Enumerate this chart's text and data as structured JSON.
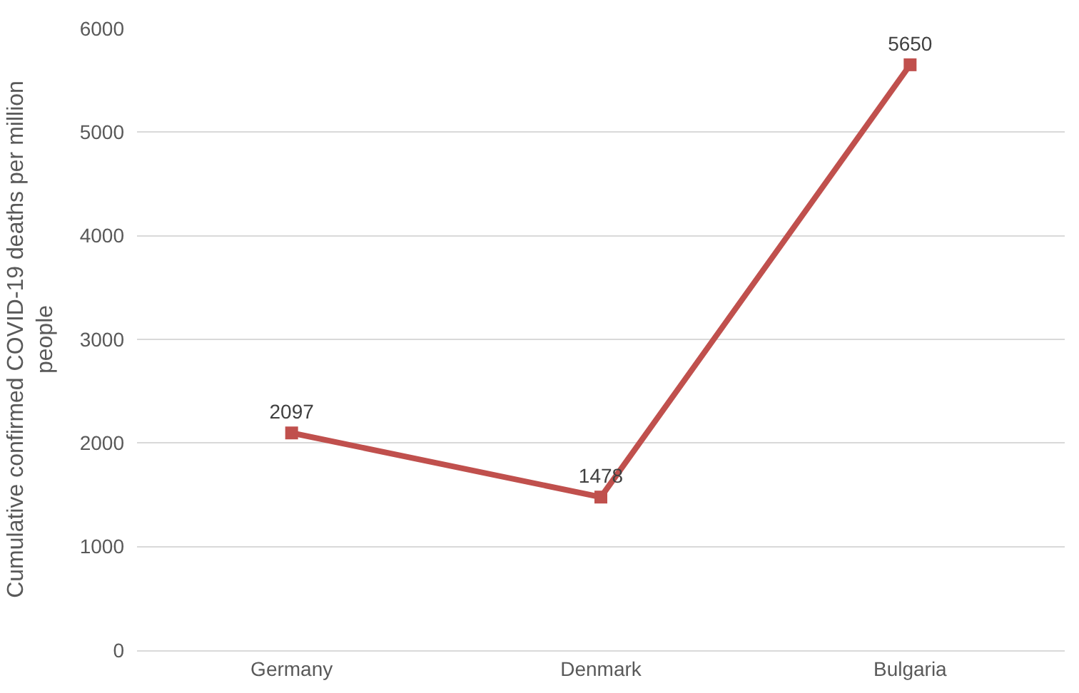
{
  "chart_data": {
    "type": "line",
    "ylabel": "Cumulative confirmed COVID-19 deaths per million people",
    "categories": [
      "Germany",
      "Denmark",
      "Bulgaria"
    ],
    "series": [
      {
        "color": "#c0504d",
        "values": [
          2097,
          1478,
          5650
        ]
      }
    ],
    "ylim": [
      0,
      6000
    ],
    "yticks": [
      0,
      1000,
      2000,
      3000,
      4000,
      5000,
      6000
    ],
    "grid": "y",
    "marker": "square",
    "line_style": "solid",
    "data_labels": true,
    "legend": false
  }
}
